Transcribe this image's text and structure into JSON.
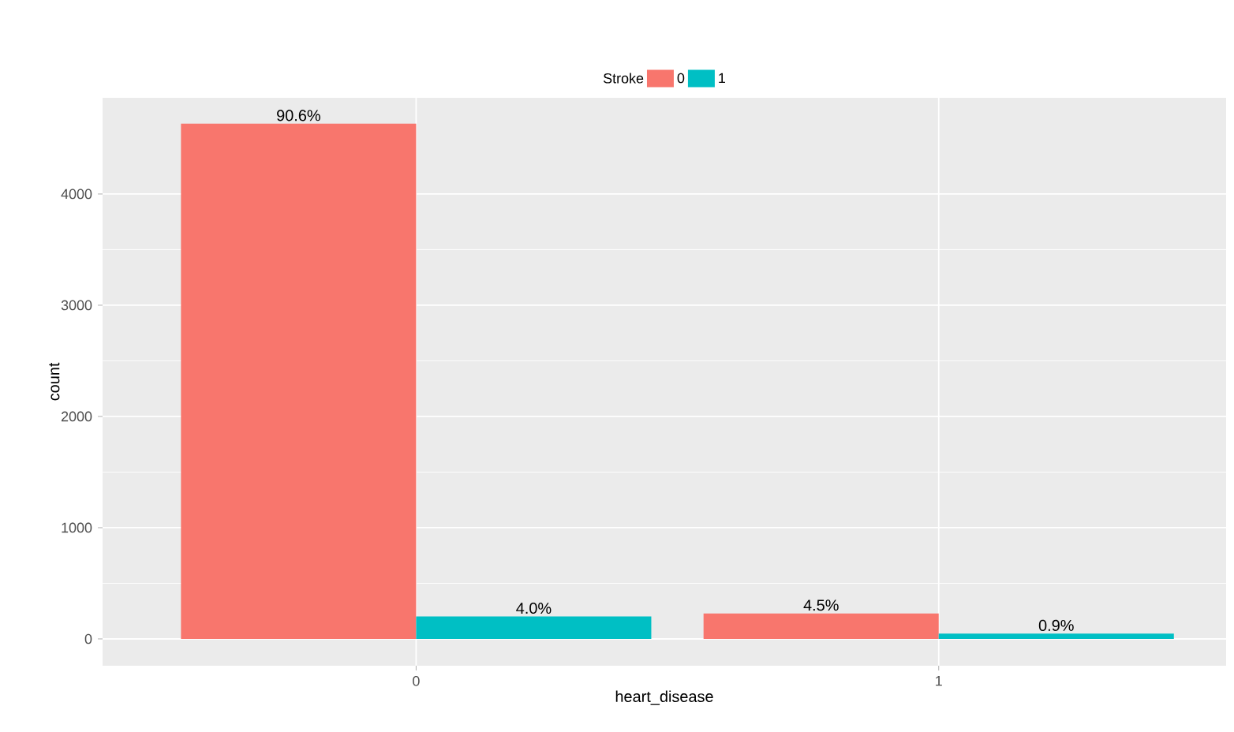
{
  "chart_data": {
    "type": "bar",
    "xlabel": "heart_disease",
    "ylabel": "count",
    "legend_title": "Stroke",
    "categories": [
      "0",
      "1"
    ],
    "series": [
      {
        "name": "0",
        "color": "#f8766d",
        "values": [
          4632,
          229
        ]
      },
      {
        "name": "1",
        "color": "#00bfc4",
        "values": [
          202,
          47
        ]
      }
    ],
    "annotations": [
      "90.6%",
      "4.5%",
      "4.0%",
      "0.9%"
    ],
    "ylim": [
      -241,
      4865
    ],
    "yticks": [
      0,
      1000,
      2000,
      3000,
      4000
    ],
    "grid": true,
    "legend": "top"
  }
}
